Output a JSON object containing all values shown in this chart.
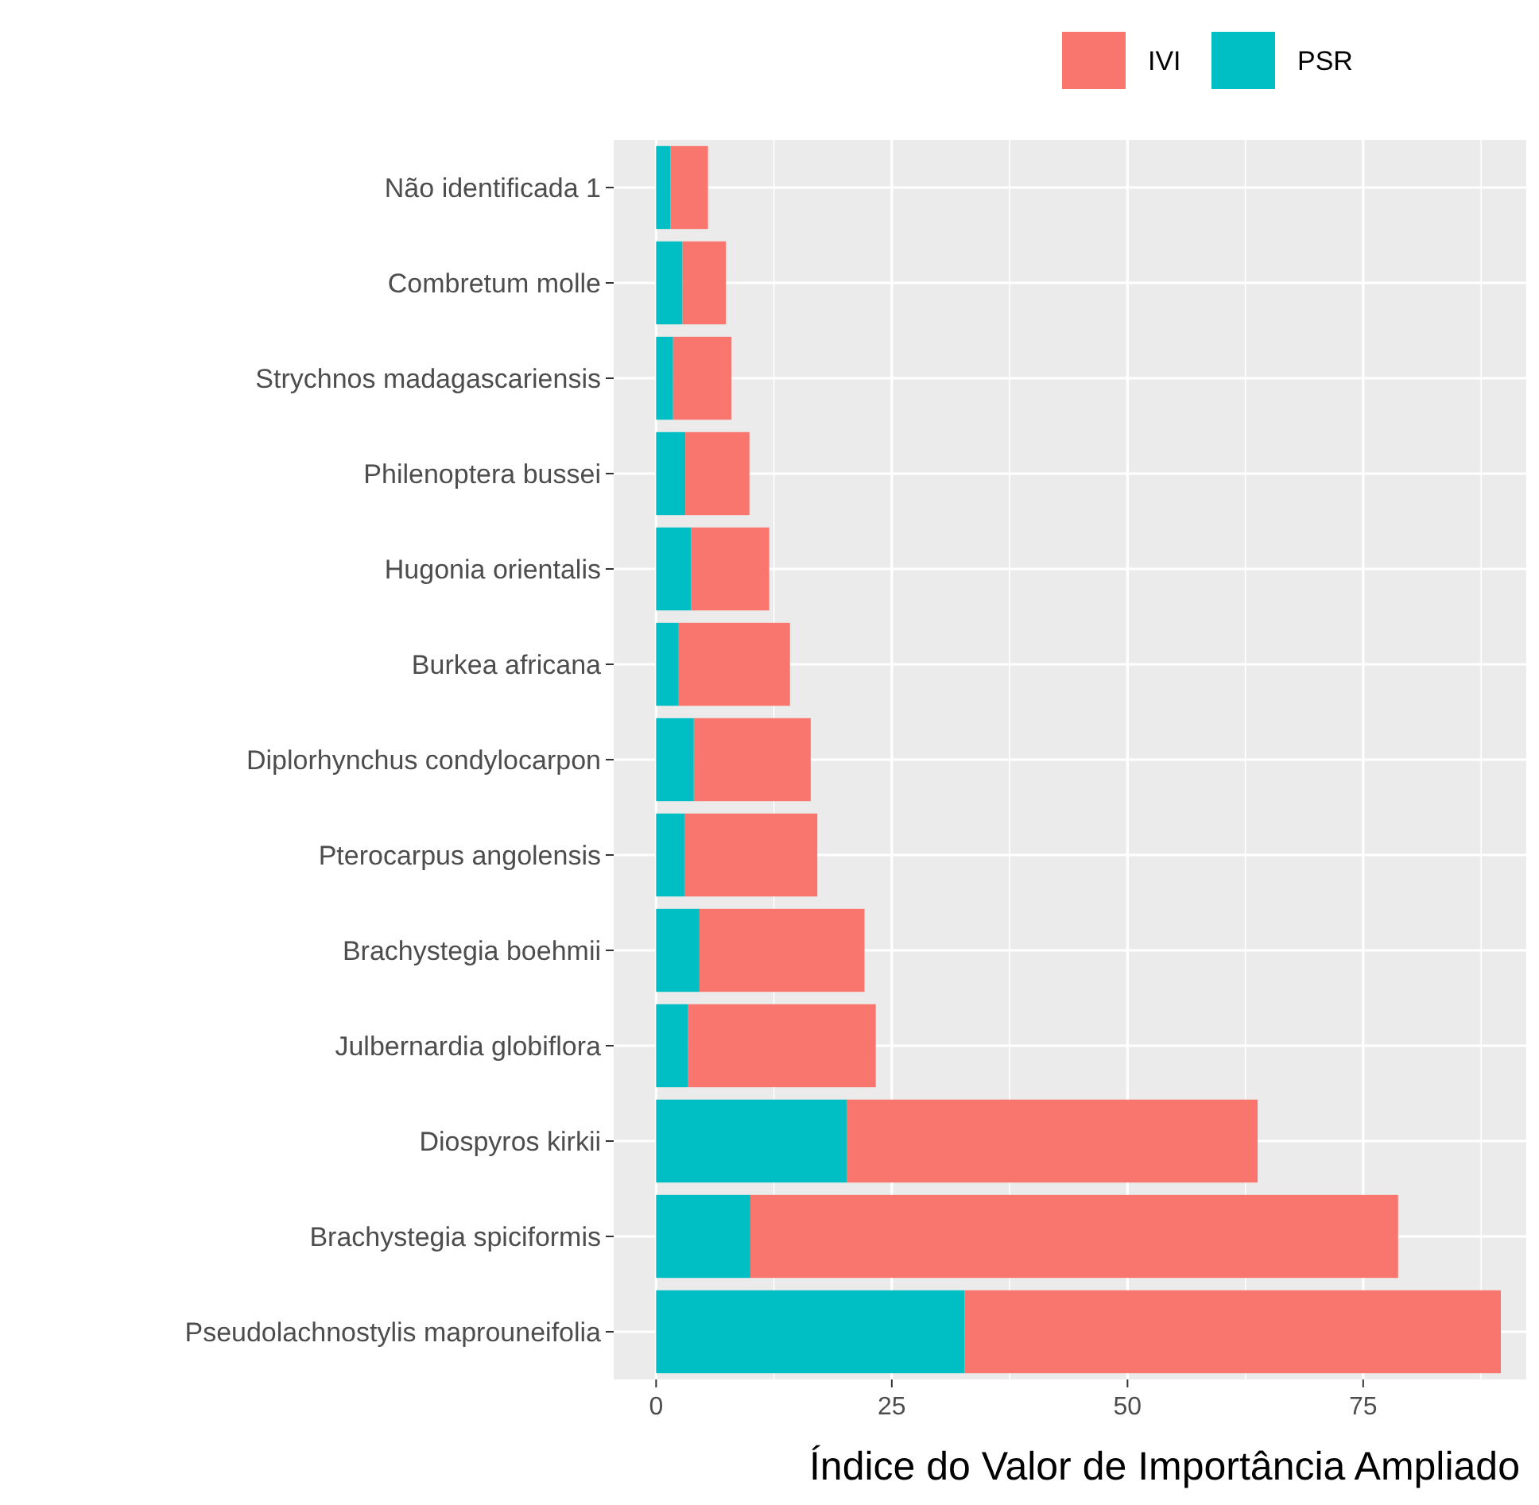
{
  "chart_data": {
    "type": "bar",
    "orientation": "horizontal",
    "stacked": true,
    "xlabel": "Índice do Valor de Importância Ampliado",
    "categories": [
      "Não identificada 1",
      "Combretum molle",
      "Strychnos madagascariensis",
      "Philenoptera bussei",
      "Hugonia orientalis",
      "Burkea africana",
      "Diplorhynchus condylocarpon",
      "Pterocarpus angolensis",
      "Brachystegia boehmii",
      "Julbernardia globiflora",
      "Diospyros kirkii",
      "Brachystegia spiciformis",
      "Pseudolachnostylis maprouneifolia"
    ],
    "series": [
      {
        "name": "PSR",
        "color": "#00bfc4",
        "values": [
          1.5,
          2.8,
          1.8,
          3.1,
          3.7,
          2.4,
          4.0,
          3.0,
          4.6,
          3.4,
          20.2,
          10.0,
          32.7
        ]
      },
      {
        "name": "IVI",
        "color": "#f8766d",
        "values": [
          4.0,
          4.6,
          6.2,
          6.8,
          8.3,
          11.8,
          12.4,
          14.1,
          17.5,
          19.9,
          43.6,
          68.7,
          56.9
        ]
      }
    ],
    "xlim": [
      -4.5,
      92.3
    ],
    "xticks": [
      0,
      25,
      50,
      75
    ],
    "grid": true,
    "legend": "top"
  }
}
